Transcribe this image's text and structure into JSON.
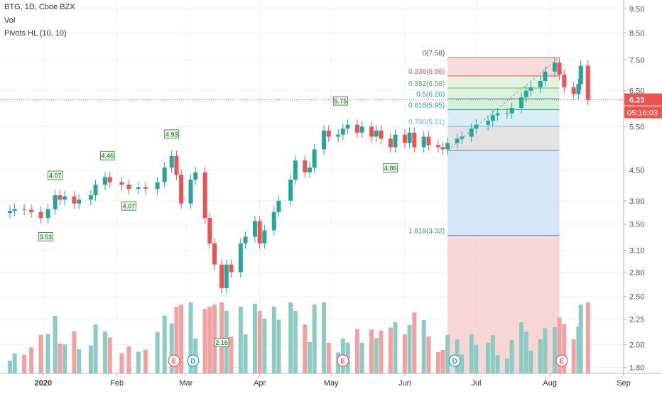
{
  "legend": {
    "symbol": "BTG, 1D, Cboe BZX",
    "volume": "Vol",
    "pivots": "Pivots HL (10, 10)"
  },
  "price_axis": {
    "ticks": [
      "9.50",
      "8.50",
      "7.50",
      "6.50",
      "5.50",
      "4.50",
      "3.90",
      "3.50",
      "3.10",
      "2.80",
      "2.50",
      "2.25",
      "2.00",
      "1.80"
    ],
    "last_price_label": "6.23",
    "countdown_label": "05:16:03",
    "scale": "log"
  },
  "time_axis": {
    "labels": [
      "2020",
      "Feb",
      "Mar",
      "Apr",
      "May",
      "Jun",
      "Jul",
      "Aug",
      "Sep"
    ]
  },
  "pivot_labels": [
    "4.07",
    "3.53",
    "4.46",
    "4.07",
    "4.93",
    "2.16",
    "5.75",
    "4.86"
  ],
  "fib_labels": [
    "0(7.58)",
    "0.236(6.96)",
    "0.382(6.58)",
    "0.5(6.26)",
    "0.618(5.95)",
    "0.786(5.51)",
    "1.618(3.32)"
  ],
  "event_markers": [
    "E",
    "D",
    "E",
    "D",
    "E"
  ],
  "colors": {
    "up": "#26a69a",
    "down": "#ef5350",
    "vol_up": "#8ccbc4",
    "vol_down": "#f2a0a0",
    "last_price": "#ef5350",
    "countdown_bg": "#ef5350"
  },
  "chart_data": {
    "type": "candlestick",
    "symbol": "BTG",
    "interval": "1D",
    "exchange": "Cboe BZX",
    "y_scale": "log",
    "ylim": [
      1.75,
      9.9
    ],
    "x_range": [
      "2019-12-18",
      "2020-09-01"
    ],
    "last_price": 6.23,
    "fib_retracement": {
      "levels": [
        {
          "ratio": 0,
          "price": 7.58
        },
        {
          "ratio": 0.236,
          "price": 6.96
        },
        {
          "ratio": 0.382,
          "price": 6.58
        },
        {
          "ratio": 0.5,
          "price": 6.26
        },
        {
          "ratio": 0.618,
          "price": 5.95
        },
        {
          "ratio": 0.786,
          "price": 5.51
        },
        {
          "ratio": 1,
          "price": 4.93
        },
        {
          "ratio": 1.618,
          "price": 3.32
        }
      ]
    },
    "pivots": [
      {
        "type": "high",
        "price": 4.07,
        "date": "2020-01-06"
      },
      {
        "type": "low",
        "price": 3.53,
        "date": "2020-01-02"
      },
      {
        "type": "high",
        "price": 4.46,
        "date": "2020-01-28"
      },
      {
        "type": "low",
        "price": 4.07,
        "date": "2020-02-06"
      },
      {
        "type": "high",
        "price": 4.93,
        "date": "2020-02-24"
      },
      {
        "type": "low",
        "price": 2.16,
        "date": "2020-03-16"
      },
      {
        "type": "high",
        "price": 5.75,
        "date": "2020-05-05"
      },
      {
        "type": "low",
        "price": 4.86,
        "date": "2020-05-26"
      }
    ],
    "close": [
      [
        "2019-12-18",
        3.72
      ],
      [
        "2019-12-20",
        3.75
      ],
      [
        "2019-12-24",
        3.74
      ],
      [
        "2019-12-27",
        3.7
      ],
      [
        "2019-12-31",
        3.6
      ],
      [
        "2020-01-03",
        3.75
      ],
      [
        "2020-01-06",
        4.0
      ],
      [
        "2020-01-08",
        3.92
      ],
      [
        "2020-01-10",
        3.98
      ],
      [
        "2020-01-14",
        3.85
      ],
      [
        "2020-01-16",
        3.92
      ],
      [
        "2020-01-21",
        4.0
      ],
      [
        "2020-01-23",
        4.2
      ],
      [
        "2020-01-27",
        4.35
      ],
      [
        "2020-01-29",
        4.25
      ],
      [
        "2020-02-03",
        4.2
      ],
      [
        "2020-02-06",
        4.12
      ],
      [
        "2020-02-10",
        4.15
      ],
      [
        "2020-02-13",
        4.12
      ],
      [
        "2020-02-18",
        4.25
      ],
      [
        "2020-02-21",
        4.55
      ],
      [
        "2020-02-24",
        4.8
      ],
      [
        "2020-02-26",
        4.4
      ],
      [
        "2020-02-28",
        3.85
      ],
      [
        "2020-03-03",
        4.3
      ],
      [
        "2020-03-05",
        4.45
      ],
      [
        "2020-03-09",
        3.6
      ],
      [
        "2020-03-11",
        3.2
      ],
      [
        "2020-03-13",
        2.9
      ],
      [
        "2020-03-16",
        2.6
      ],
      [
        "2020-03-18",
        2.9
      ],
      [
        "2020-03-20",
        2.8
      ],
      [
        "2020-03-24",
        3.2
      ],
      [
        "2020-03-26",
        3.3
      ],
      [
        "2020-03-30",
        3.55
      ],
      [
        "2020-04-01",
        3.2
      ],
      [
        "2020-04-03",
        3.4
      ],
      [
        "2020-04-07",
        3.7
      ],
      [
        "2020-04-09",
        3.9
      ],
      [
        "2020-04-14",
        4.3
      ],
      [
        "2020-04-16",
        4.7
      ],
      [
        "2020-04-20",
        4.45
      ],
      [
        "2020-04-22",
        4.55
      ],
      [
        "2020-04-24",
        4.95
      ],
      [
        "2020-04-28",
        5.4
      ],
      [
        "2020-04-30",
        5.25
      ],
      [
        "2020-05-04",
        5.3
      ],
      [
        "2020-05-06",
        5.45
      ],
      [
        "2020-05-08",
        5.55
      ],
      [
        "2020-05-12",
        5.35
      ],
      [
        "2020-05-14",
        5.5
      ],
      [
        "2020-05-18",
        5.25
      ],
      [
        "2020-05-20",
        5.4
      ],
      [
        "2020-05-22",
        5.2
      ],
      [
        "2020-05-26",
        5.0
      ],
      [
        "2020-05-28",
        5.3
      ],
      [
        "2020-06-01",
        5.1
      ],
      [
        "2020-06-03",
        5.35
      ],
      [
        "2020-06-05",
        5.0
      ],
      [
        "2020-06-09",
        5.25
      ],
      [
        "2020-06-11",
        5.05
      ],
      [
        "2020-06-15",
        5.0
      ],
      [
        "2020-06-17",
        4.95
      ],
      [
        "2020-06-19",
        5.1
      ],
      [
        "2020-06-23",
        5.2
      ],
      [
        "2020-06-25",
        5.25
      ],
      [
        "2020-06-29",
        5.45
      ],
      [
        "2020-07-01",
        5.55
      ],
      [
        "2020-07-06",
        5.65
      ],
      [
        "2020-07-08",
        5.8
      ],
      [
        "2020-07-10",
        5.85
      ],
      [
        "2020-07-14",
        5.85
      ],
      [
        "2020-07-16",
        6.0
      ],
      [
        "2020-07-20",
        6.3
      ],
      [
        "2020-07-22",
        6.5
      ],
      [
        "2020-07-24",
        6.6
      ],
      [
        "2020-07-28",
        6.8
      ],
      [
        "2020-07-30",
        7.1
      ],
      [
        "2020-08-03",
        7.4
      ],
      [
        "2020-08-05",
        7.0
      ],
      [
        "2020-08-07",
        6.6
      ],
      [
        "2020-08-11",
        6.4
      ],
      [
        "2020-08-13",
        6.7
      ],
      [
        "2020-08-14",
        7.3
      ],
      [
        "2020-08-17",
        6.23
      ]
    ],
    "volume_relative": "bars below price, green on up days and red on down days"
  }
}
